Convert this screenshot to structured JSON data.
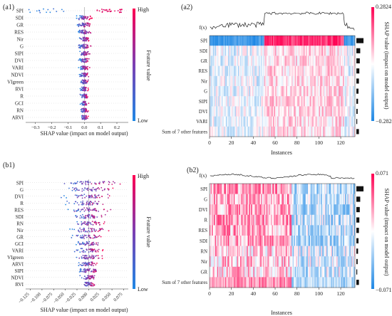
{
  "panels": {
    "a1": {
      "label": "(a1)"
    },
    "a2": {
      "label": "(a2)"
    },
    "b1": {
      "label": "(b1)"
    },
    "b2": {
      "label": "(b2)"
    }
  },
  "colors": {
    "low": "#1e88e5",
    "mid": "#ffffff",
    "high": "#ff0052",
    "mid_beeswarm": "#7b3fb3"
  },
  "chart_data": [
    {
      "id": "a1",
      "type": "scatter",
      "subtype": "beeswarm",
      "features": [
        "SPI",
        "SDI",
        "GR",
        "RES",
        "Nir",
        "G",
        "SIPI",
        "DVI",
        "VARI",
        "NDVI",
        "VIgreen",
        "RVI",
        "R",
        "GCI",
        "RN",
        "ARVI"
      ],
      "spread": [
        0.28,
        0.06,
        0.05,
        0.05,
        0.05,
        0.05,
        0.04,
        0.04,
        0.04,
        0.04,
        0.03,
        0.03,
        0.03,
        0.03,
        0.03,
        0.03
      ],
      "xlabel": "SHAP value (impact on model output)",
      "xticks": [
        "−0.3",
        "−0.2",
        "−0.1",
        "0.0",
        "0.1",
        "0.2"
      ],
      "xlim": [
        -0.36,
        0.27
      ],
      "colorbar": {
        "label": "Feature value",
        "high": "High",
        "low": "Low"
      }
    },
    {
      "id": "a2",
      "type": "heatmap",
      "fx_label": "f(x)",
      "features": [
        "SPI",
        "SDI",
        "GR",
        "RES",
        "Nir",
        "G",
        "SIPI",
        "DVI",
        "VARI",
        "Sum of 7 other features"
      ],
      "xlabel": "Instances",
      "xticks": [
        "0",
        "20",
        "40",
        "60",
        "80",
        "100",
        "120"
      ],
      "xlim": [
        0,
        133
      ],
      "colorbar": {
        "label": "SHAP value (impact on model output)",
        "max": "0.2824",
        "min": "−0.2824"
      }
    },
    {
      "id": "b1",
      "type": "scatter",
      "subtype": "beeswarm",
      "features": [
        "SPI",
        "G",
        "DVI",
        "R",
        "RES",
        "SDI",
        "RN",
        "Nir",
        "GR",
        "GCI",
        "VARI",
        "VIgreen",
        "ARVI",
        "SIPI",
        "NDVI",
        "RVI"
      ],
      "spread": [
        0.09,
        0.07,
        0.07,
        0.06,
        0.06,
        0.05,
        0.05,
        0.05,
        0.05,
        0.04,
        0.04,
        0.04,
        0.03,
        0.03,
        0.02,
        0.02
      ],
      "xlabel": "SHAP value (impact on model output)",
      "xticks": [
        "−0.125",
        "−0.100",
        "−0.075",
        "−0.050",
        "−0.025",
        "0.000",
        "0.025",
        "0.050",
        "0.075"
      ],
      "xlim": [
        -0.135,
        0.085
      ],
      "colorbar": {
        "label": "Feature value",
        "high": "High",
        "low": "Low"
      }
    },
    {
      "id": "b2",
      "type": "heatmap",
      "fx_label": "f(x)",
      "features": [
        "SPI",
        "G",
        "DVI",
        "R",
        "RES",
        "SDI",
        "RN",
        "Nir",
        "GR",
        "Sum of 7 other features"
      ],
      "xlabel": "Instances",
      "xticks": [
        "0",
        "20",
        "40",
        "60",
        "80",
        "100",
        "120"
      ],
      "xlim": [
        0,
        133
      ],
      "colorbar": {
        "label": "SHAP value (impact on model output)",
        "max": "0.071",
        "min": "−0.071"
      }
    }
  ]
}
